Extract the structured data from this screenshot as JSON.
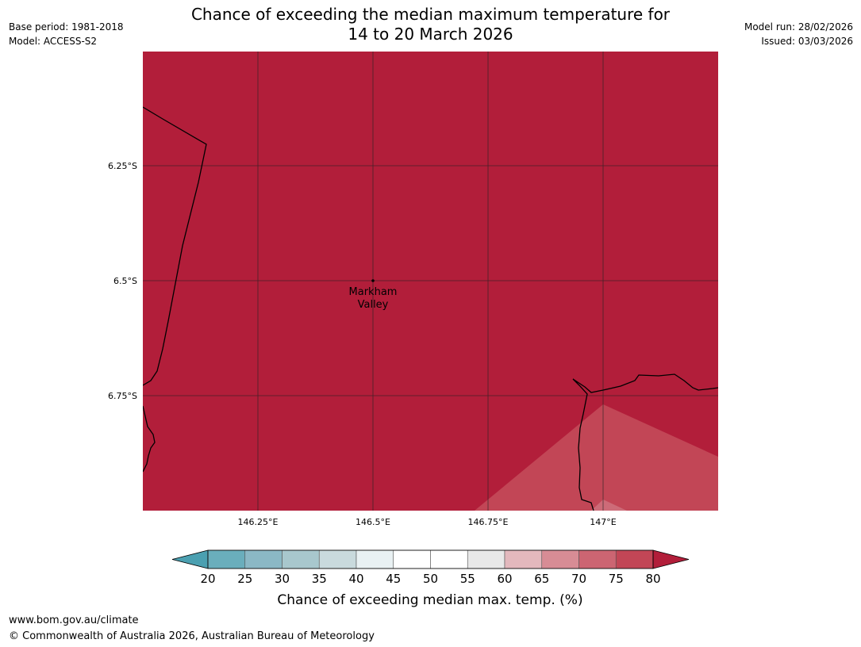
{
  "header": {
    "base_period": "Base period: 1981-2018",
    "model": "Model: ACCESS-S2",
    "model_run": "Model run: 28/02/2026",
    "issued": "Issued: 03/03/2026",
    "title_line1": "Chance of exceeding the median maximum temperature for",
    "title_line2": "14 to 20 March 2026"
  },
  "map": {
    "fill_color": "#b21e3a",
    "lighter_zone_color": "#c24656",
    "lightest_zone_color": "#cd6b78",
    "lat_labels": [
      "6.25°S",
      "6.5°S",
      "6.75°S"
    ],
    "lon_labels": [
      "146.25°E",
      "146.5°E",
      "146.75°E",
      "147°E"
    ],
    "place": {
      "name_line1": "Markham",
      "name_line2": "Valley",
      "lat": -6.5,
      "lon": 146.5
    }
  },
  "legend": {
    "title": "Chance of exceeding median max. temp. (%)",
    "ticks": [
      "20",
      "25",
      "30",
      "35",
      "40",
      "45",
      "50",
      "55",
      "60",
      "65",
      "70",
      "75",
      "80"
    ],
    "colors": [
      "#4ba0b1",
      "#6aaebc",
      "#8bb8c5",
      "#a8c7cd",
      "#c9dadd",
      "#e9f1f3",
      "#ffffff",
      "#ffffff",
      "#e8e8e8",
      "#e3b8bd",
      "#d78c95",
      "#cc6572",
      "#c24656",
      "#b21e3a"
    ]
  },
  "footer": {
    "url": "www.bom.gov.au/climate",
    "copyright": "© Commonwealth of Australia 2026, Australian Bureau of Meteorology"
  }
}
